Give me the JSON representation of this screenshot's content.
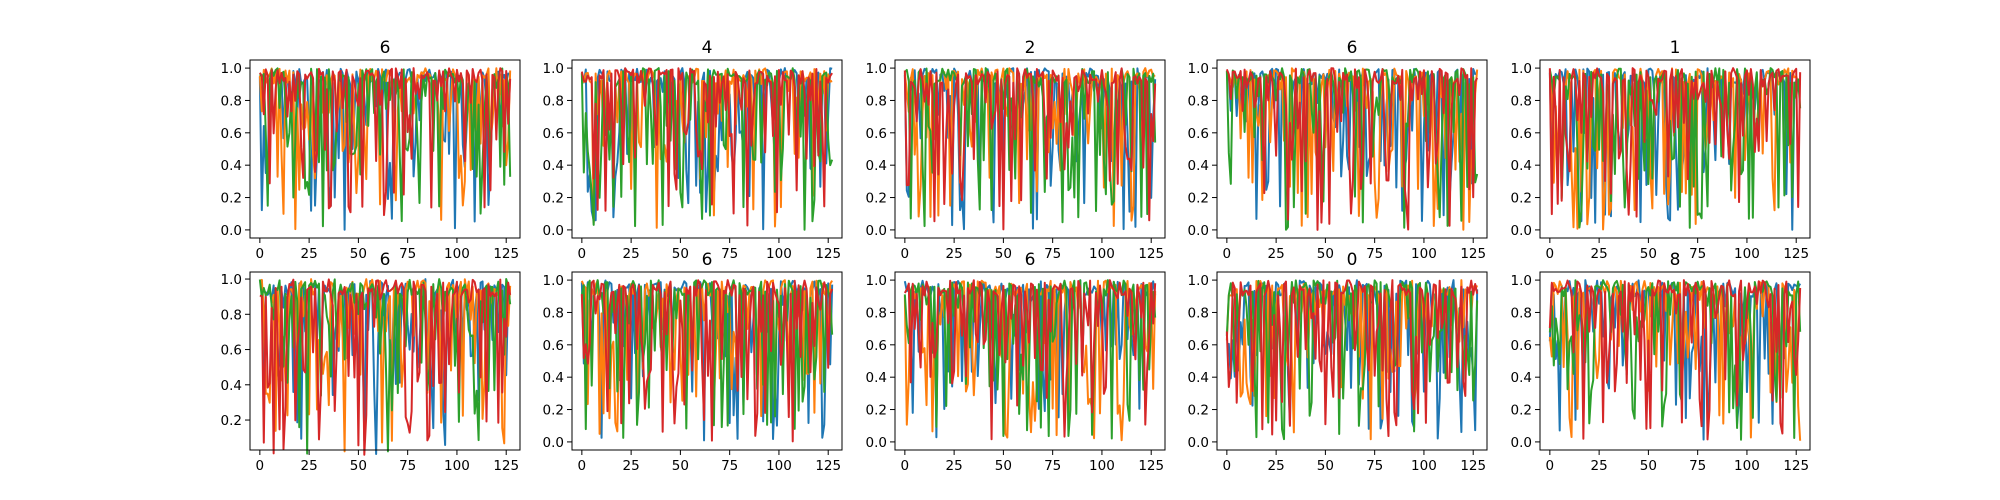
{
  "figure": {
    "layout": {
      "rows": 2,
      "cols": 5
    },
    "series_colors": [
      "#1f77b4",
      "#ff7f0e",
      "#2ca02c",
      "#d62728"
    ]
  },
  "chart_data": [
    {
      "type": "line",
      "title": "6",
      "xlim": [
        -5,
        132
      ],
      "ylim": [
        -0.05,
        1.05
      ],
      "xticks": [
        0,
        25,
        50,
        75,
        100,
        125
      ],
      "yticks": [
        0.0,
        0.2,
        0.4,
        0.6,
        0.8,
        1.0
      ],
      "xtick_labels": [
        "0",
        "25",
        "50",
        "75",
        "100",
        "125"
      ],
      "ytick_labels": [
        "0.0",
        "0.2",
        "0.4",
        "0.6",
        "0.8",
        "1.0"
      ],
      "x": {
        "start": 0,
        "end": 127
      },
      "series": [
        {
          "seed": 101
        },
        {
          "seed": 102
        },
        {
          "seed": 103
        },
        {
          "seed": 104
        }
      ]
    },
    {
      "type": "line",
      "title": "4",
      "xlim": [
        -5,
        132
      ],
      "ylim": [
        -0.05,
        1.05
      ],
      "xticks": [
        0,
        25,
        50,
        75,
        100,
        125
      ],
      "yticks": [
        0.0,
        0.2,
        0.4,
        0.6,
        0.8,
        1.0
      ],
      "xtick_labels": [
        "0",
        "25",
        "50",
        "75",
        "100",
        "125"
      ],
      "ytick_labels": [
        "0.0",
        "0.2",
        "0.4",
        "0.6",
        "0.8",
        "1.0"
      ],
      "x": {
        "start": 0,
        "end": 127
      },
      "series": [
        {
          "seed": 201
        },
        {
          "seed": 202
        },
        {
          "seed": 203
        },
        {
          "seed": 204
        }
      ]
    },
    {
      "type": "line",
      "title": "2",
      "xlim": [
        -5,
        132
      ],
      "ylim": [
        -0.05,
        1.05
      ],
      "xticks": [
        0,
        25,
        50,
        75,
        100,
        125
      ],
      "yticks": [
        0.0,
        0.2,
        0.4,
        0.6,
        0.8,
        1.0
      ],
      "xtick_labels": [
        "0",
        "25",
        "50",
        "75",
        "100",
        "125"
      ],
      "ytick_labels": [
        "0.0",
        "0.2",
        "0.4",
        "0.6",
        "0.8",
        "1.0"
      ],
      "x": {
        "start": 0,
        "end": 127
      },
      "series": [
        {
          "seed": 301
        },
        {
          "seed": 302
        },
        {
          "seed": 303
        },
        {
          "seed": 304
        }
      ]
    },
    {
      "type": "line",
      "title": "6",
      "xlim": [
        -5,
        132
      ],
      "ylim": [
        -0.05,
        1.05
      ],
      "xticks": [
        0,
        25,
        50,
        75,
        100,
        125
      ],
      "yticks": [
        0.0,
        0.2,
        0.4,
        0.6,
        0.8,
        1.0
      ],
      "xtick_labels": [
        "0",
        "25",
        "50",
        "75",
        "100",
        "125"
      ],
      "ytick_labels": [
        "0.0",
        "0.2",
        "0.4",
        "0.6",
        "0.8",
        "1.0"
      ],
      "x": {
        "start": 0,
        "end": 127
      },
      "series": [
        {
          "seed": 401
        },
        {
          "seed": 402
        },
        {
          "seed": 403
        },
        {
          "seed": 404
        }
      ]
    },
    {
      "type": "line",
      "title": "1",
      "xlim": [
        -5,
        132
      ],
      "ylim": [
        -0.05,
        1.05
      ],
      "xticks": [
        0,
        25,
        50,
        75,
        100,
        125
      ],
      "yticks": [
        0.0,
        0.2,
        0.4,
        0.6,
        0.8,
        1.0
      ],
      "xtick_labels": [
        "0",
        "25",
        "50",
        "75",
        "100",
        "125"
      ],
      "ytick_labels": [
        "0.0",
        "0.2",
        "0.4",
        "0.6",
        "0.8",
        "1.0"
      ],
      "x": {
        "start": 0,
        "end": 127
      },
      "series": [
        {
          "seed": 501
        },
        {
          "seed": 502
        },
        {
          "seed": 503
        },
        {
          "seed": 504
        }
      ]
    },
    {
      "type": "line",
      "title": "6",
      "xlim": [
        -5,
        132
      ],
      "ylim": [
        0.03,
        1.04
      ],
      "xticks": [
        0,
        25,
        50,
        75,
        100,
        125
      ],
      "yticks": [
        0.2,
        0.4,
        0.6,
        0.8,
        1.0
      ],
      "xtick_labels": [
        "0",
        "25",
        "50",
        "75",
        "100",
        "125"
      ],
      "ytick_labels": [
        "0.2",
        "0.4",
        "0.6",
        "0.8",
        "1.0"
      ],
      "x": {
        "start": 0,
        "end": 127
      },
      "series": [
        {
          "seed": 601
        },
        {
          "seed": 602
        },
        {
          "seed": 603
        },
        {
          "seed": 604
        }
      ]
    },
    {
      "type": "line",
      "title": "6",
      "xlim": [
        -5,
        132
      ],
      "ylim": [
        -0.05,
        1.05
      ],
      "xticks": [
        0,
        25,
        50,
        75,
        100,
        125
      ],
      "yticks": [
        0.0,
        0.2,
        0.4,
        0.6,
        0.8,
        1.0
      ],
      "xtick_labels": [
        "0",
        "25",
        "50",
        "75",
        "100",
        "125"
      ],
      "ytick_labels": [
        "0.0",
        "0.2",
        "0.4",
        "0.6",
        "0.8",
        "1.0"
      ],
      "x": {
        "start": 0,
        "end": 127
      },
      "series": [
        {
          "seed": 701
        },
        {
          "seed": 702
        },
        {
          "seed": 703
        },
        {
          "seed": 704
        }
      ]
    },
    {
      "type": "line",
      "title": "6",
      "xlim": [
        -5,
        132
      ],
      "ylim": [
        -0.05,
        1.05
      ],
      "xticks": [
        0,
        25,
        50,
        75,
        100,
        125
      ],
      "yticks": [
        0.0,
        0.2,
        0.4,
        0.6,
        0.8,
        1.0
      ],
      "xtick_labels": [
        "0",
        "25",
        "50",
        "75",
        "100",
        "125"
      ],
      "ytick_labels": [
        "0.0",
        "0.2",
        "0.4",
        "0.6",
        "0.8",
        "1.0"
      ],
      "x": {
        "start": 0,
        "end": 127
      },
      "series": [
        {
          "seed": 801
        },
        {
          "seed": 802
        },
        {
          "seed": 803
        },
        {
          "seed": 804
        }
      ]
    },
    {
      "type": "line",
      "title": "0",
      "xlim": [
        -5,
        132
      ],
      "ylim": [
        -0.05,
        1.05
      ],
      "xticks": [
        0,
        25,
        50,
        75,
        100,
        125
      ],
      "yticks": [
        0.0,
        0.2,
        0.4,
        0.6,
        0.8,
        1.0
      ],
      "xtick_labels": [
        "0",
        "25",
        "50",
        "75",
        "100",
        "125"
      ],
      "ytick_labels": [
        "0.0",
        "0.2",
        "0.4",
        "0.6",
        "0.8",
        "1.0"
      ],
      "x": {
        "start": 0,
        "end": 127
      },
      "series": [
        {
          "seed": 901
        },
        {
          "seed": 902
        },
        {
          "seed": 903
        },
        {
          "seed": 904
        }
      ]
    },
    {
      "type": "line",
      "title": "8",
      "xlim": [
        -5,
        132
      ],
      "ylim": [
        -0.05,
        1.05
      ],
      "xticks": [
        0,
        25,
        50,
        75,
        100,
        125
      ],
      "yticks": [
        0.0,
        0.2,
        0.4,
        0.6,
        0.8,
        1.0
      ],
      "xtick_labels": [
        "0",
        "25",
        "50",
        "75",
        "100",
        "125"
      ],
      "ytick_labels": [
        "0.0",
        "0.2",
        "0.4",
        "0.6",
        "0.8",
        "1.0"
      ],
      "x": {
        "start": 0,
        "end": 127
      },
      "series": [
        {
          "seed": 1001
        },
        {
          "seed": 1002
        },
        {
          "seed": 1003
        },
        {
          "seed": 1004
        }
      ]
    }
  ]
}
